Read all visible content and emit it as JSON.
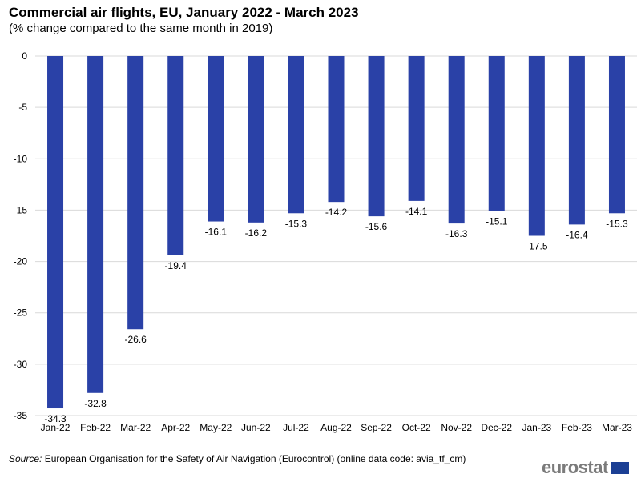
{
  "header": {
    "title": "Commercial air flights, EU, January 2022 - March 2023",
    "subtitle": "(% change compared to the same month in 2019)"
  },
  "footer": {
    "source_label": "Source:",
    "source_text": " European Organisation for the Safety of Air Navigation (Eurocontrol) (online data code: avia_tf_cm)",
    "logo_text": "eurostat"
  },
  "colors": {
    "bar": "#2a41a7",
    "grid": "#d9d9d9",
    "logo": "#7b7b7b",
    "flag": "#1c3f94"
  },
  "chart_data": {
    "type": "bar",
    "title": "Commercial air flights, EU, January 2022 - March 2023",
    "subtitle": "(% change compared to the same month in 2019)",
    "xlabel": "",
    "ylabel": "",
    "categories": [
      "Jan-22",
      "Feb-22",
      "Mar-22",
      "Apr-22",
      "May-22",
      "Jun-22",
      "Jul-22",
      "Aug-22",
      "Sep-22",
      "Oct-22",
      "Nov-22",
      "Dec-22",
      "Jan-23",
      "Feb-23",
      "Mar-23"
    ],
    "values": [
      -34.3,
      -32.8,
      -26.6,
      -19.4,
      -16.1,
      -16.2,
      -15.3,
      -14.2,
      -15.6,
      -14.1,
      -16.3,
      -15.1,
      -17.5,
      -16.4,
      -15.3
    ],
    "data_labels": [
      "-34.3",
      "-32.8",
      "-26.6",
      "-19.4",
      "-16.1",
      "-16.2",
      "-15.3",
      "-14.2",
      "-15.6",
      "-14.1",
      "-16.3",
      "-15.1",
      "-17.5",
      "-16.4",
      "-15.3"
    ],
    "yticks": [
      0,
      -5,
      -10,
      -15,
      -20,
      -25,
      -30,
      -35
    ],
    "ylim": [
      -35,
      0
    ],
    "grid": true,
    "legend": "none"
  }
}
